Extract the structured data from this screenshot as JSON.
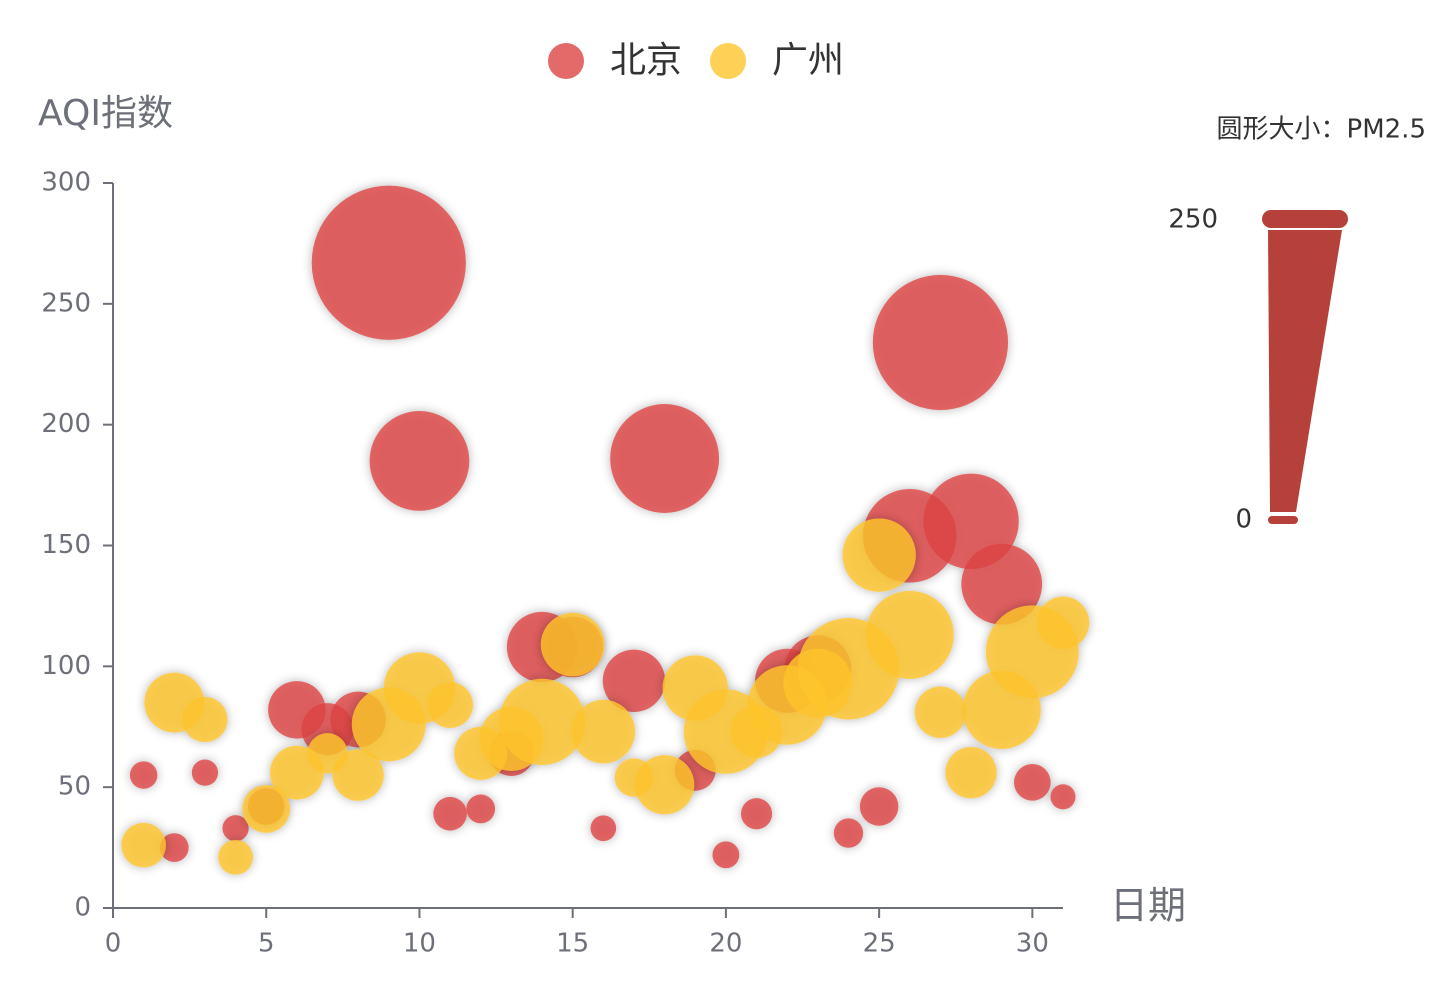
{
  "chart_data": {
    "type": "bubble",
    "legend_position": "top",
    "x_label": "日期",
    "y_label": "AQI指数",
    "xlim": [
      0,
      31
    ],
    "xticks": [
      0,
      5,
      10,
      15,
      20,
      25,
      30
    ],
    "ylim": [
      0,
      300
    ],
    "yticks": [
      0,
      50,
      100,
      150,
      200,
      250,
      300
    ],
    "x": [
      1,
      2,
      3,
      4,
      5,
      6,
      7,
      8,
      9,
      10,
      11,
      12,
      13,
      14,
      15,
      16,
      17,
      18,
      19,
      20,
      21,
      22,
      23,
      24,
      25,
      26,
      27,
      28,
      29,
      30,
      31
    ],
    "series": [
      {
        "name": "北京",
        "color": "#dd4444",
        "values": [
          55,
          25,
          56,
          33,
          42,
          82,
          74,
          78,
          267,
          185,
          39,
          41,
          64,
          108,
          108,
          33,
          94,
          186,
          57,
          22,
          39,
          94,
          99,
          31,
          42,
          154,
          234,
          160,
          134,
          52,
          46
        ],
        "sizes": [
          9,
          11,
          7,
          7,
          24,
          58,
          49,
          55,
          216,
          127,
          19,
          11,
          38,
          79,
          63,
          6,
          66,
          142,
          31,
          8,
          15,
          69,
          73,
          12,
          27,
          117,
          185,
          120,
          96,
          24,
          5
        ]
      },
      {
        "name": "广州",
        "color": "#fec42c",
        "values": [
          26,
          85,
          78,
          21,
          41,
          56,
          64,
          55,
          76,
          91,
          84,
          64,
          70,
          77,
          109,
          73,
          54,
          51,
          91,
          73,
          73,
          84,
          93,
          99,
          146,
          113,
          81,
          56,
          82,
          106,
          118
        ],
        "sizes": [
          37,
          62,
          38,
          21,
          42,
          52,
          30,
          48,
          85,
          81,
          39,
          51,
          69,
          105,
          68,
          68,
          27,
          61,
          71,
          102,
          50,
          94,
          77,
          130,
          84,
          108,
          48,
          48,
          92,
          116,
          50
        ]
      }
    ],
    "size_legend": {
      "title": "圆形大小：PM2.5",
      "min": 0,
      "max": 250,
      "color": "#b6403a"
    }
  }
}
